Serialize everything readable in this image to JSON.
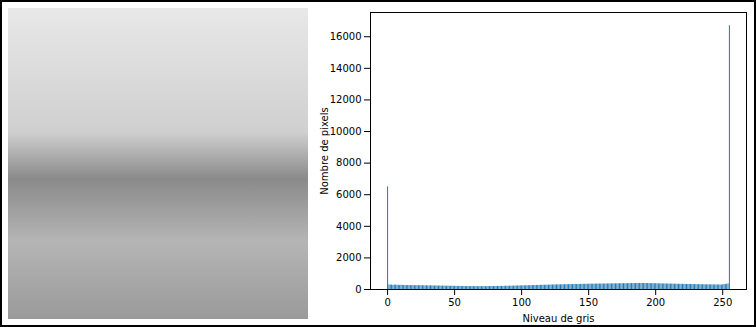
{
  "chart_data": {
    "type": "bar",
    "xlabel": "Niveau de gris",
    "ylabel": "Nombre de pixels",
    "color": "#1f77b4",
    "grid": false,
    "xlim": [
      -12.75,
      267.75
    ],
    "xticks": [
      0,
      50,
      100,
      150,
      200,
      250
    ],
    "ylim": [
      0,
      17535
    ],
    "yticks": [
      0,
      2000,
      4000,
      6000,
      8000,
      10000,
      12000,
      14000,
      16000
    ],
    "x": [
      0,
      1,
      2,
      3,
      4,
      5,
      6,
      7,
      8,
      9,
      10,
      11,
      12,
      13,
      14,
      15,
      16,
      17,
      18,
      19,
      20,
      21,
      22,
      23,
      24,
      25,
      26,
      27,
      28,
      29,
      30,
      31,
      32,
      33,
      34,
      35,
      36,
      37,
      38,
      39,
      40,
      41,
      42,
      43,
      44,
      45,
      46,
      47,
      48,
      49,
      50,
      51,
      52,
      53,
      54,
      55,
      56,
      57,
      58,
      59,
      60,
      61,
      62,
      63,
      64,
      65,
      66,
      67,
      68,
      69,
      70,
      71,
      72,
      73,
      74,
      75,
      76,
      77,
      78,
      79,
      80,
      81,
      82,
      83,
      84,
      85,
      86,
      87,
      88,
      89,
      90,
      91,
      92,
      93,
      94,
      95,
      96,
      97,
      98,
      99,
      100,
      101,
      102,
      103,
      104,
      105,
      106,
      107,
      108,
      109,
      110,
      111,
      112,
      113,
      114,
      115,
      116,
      117,
      118,
      119,
      120,
      121,
      122,
      123,
      124,
      125,
      126,
      127,
      128,
      129,
      130,
      131,
      132,
      133,
      134,
      135,
      136,
      137,
      138,
      139,
      140,
      141,
      142,
      143,
      144,
      145,
      146,
      147,
      148,
      149,
      150,
      151,
      152,
      153,
      154,
      155,
      156,
      157,
      158,
      159,
      160,
      161,
      162,
      163,
      164,
      165,
      166,
      167,
      168,
      169,
      170,
      171,
      172,
      173,
      174,
      175,
      176,
      177,
      178,
      179,
      180,
      181,
      182,
      183,
      184,
      185,
      186,
      187,
      188,
      189,
      190,
      191,
      192,
      193,
      194,
      195,
      196,
      197,
      198,
      199,
      200,
      201,
      202,
      203,
      204,
      205,
      206,
      207,
      208,
      209,
      210,
      211,
      212,
      213,
      214,
      215,
      216,
      217,
      218,
      219,
      220,
      221,
      222,
      223,
      224,
      225,
      226,
      227,
      228,
      229,
      230,
      231,
      232,
      233,
      234,
      235,
      236,
      237,
      238,
      239,
      240,
      241,
      242,
      243,
      244,
      245,
      246,
      247,
      248,
      249,
      250,
      251,
      252,
      253,
      254,
      255
    ],
    "values": [
      6500,
      290,
      270,
      285,
      260,
      275,
      280,
      265,
      270,
      255,
      268,
      262,
      250,
      258,
      245,
      260,
      248,
      252,
      240,
      255,
      238,
      246,
      242,
      235,
      250,
      232,
      240,
      236,
      228,
      242,
      230,
      225,
      235,
      222,
      230,
      218,
      226,
      220,
      215,
      224,
      212,
      220,
      210,
      216,
      205,
      214,
      208,
      200,
      210,
      198,
      205,
      195,
      200,
      192,
      198,
      188,
      196,
      190,
      185,
      194,
      182,
      190,
      186,
      180,
      188,
      178,
      185,
      180,
      176,
      184,
      178,
      182,
      175,
      186,
      180,
      188,
      182,
      190,
      185,
      192,
      188,
      195,
      190,
      198,
      194,
      200,
      196,
      205,
      200,
      208,
      204,
      212,
      208,
      215,
      210,
      220,
      218,
      225,
      220,
      230,
      226,
      235,
      230,
      240,
      236,
      245,
      240,
      250,
      246,
      255,
      250,
      258,
      262,
      256,
      268,
      262,
      272,
      266,
      275,
      270,
      280,
      276,
      285,
      280,
      290,
      284,
      295,
      288,
      298,
      292,
      302,
      296,
      306,
      300,
      310,
      304,
      315,
      308,
      318,
      312,
      322,
      316,
      325,
      320,
      328,
      322,
      332,
      326,
      335,
      330,
      338,
      332,
      340,
      335,
      342,
      338,
      345,
      340,
      348,
      342,
      350,
      345,
      352,
      348,
      355,
      350,
      358,
      352,
      360,
      355,
      362,
      358,
      365,
      360,
      368,
      362,
      370,
      365,
      372,
      368,
      375,
      370,
      378,
      372,
      380,
      375,
      382,
      376,
      385,
      378,
      388,
      380,
      385,
      376,
      380,
      372,
      376,
      368,
      372,
      364,
      368,
      360,
      364,
      356,
      360,
      352,
      356,
      348,
      350,
      344,
      346,
      340,
      342,
      336,
      338,
      332,
      334,
      328,
      330,
      325,
      328,
      322,
      325,
      318,
      320,
      315,
      318,
      312,
      315,
      308,
      312,
      305,
      308,
      302,
      305,
      298,
      302,
      295,
      300,
      292,
      298,
      290,
      295,
      288,
      292,
      285,
      290,
      282,
      288,
      280,
      300,
      310,
      320,
      330,
      350,
      16700
    ]
  }
}
